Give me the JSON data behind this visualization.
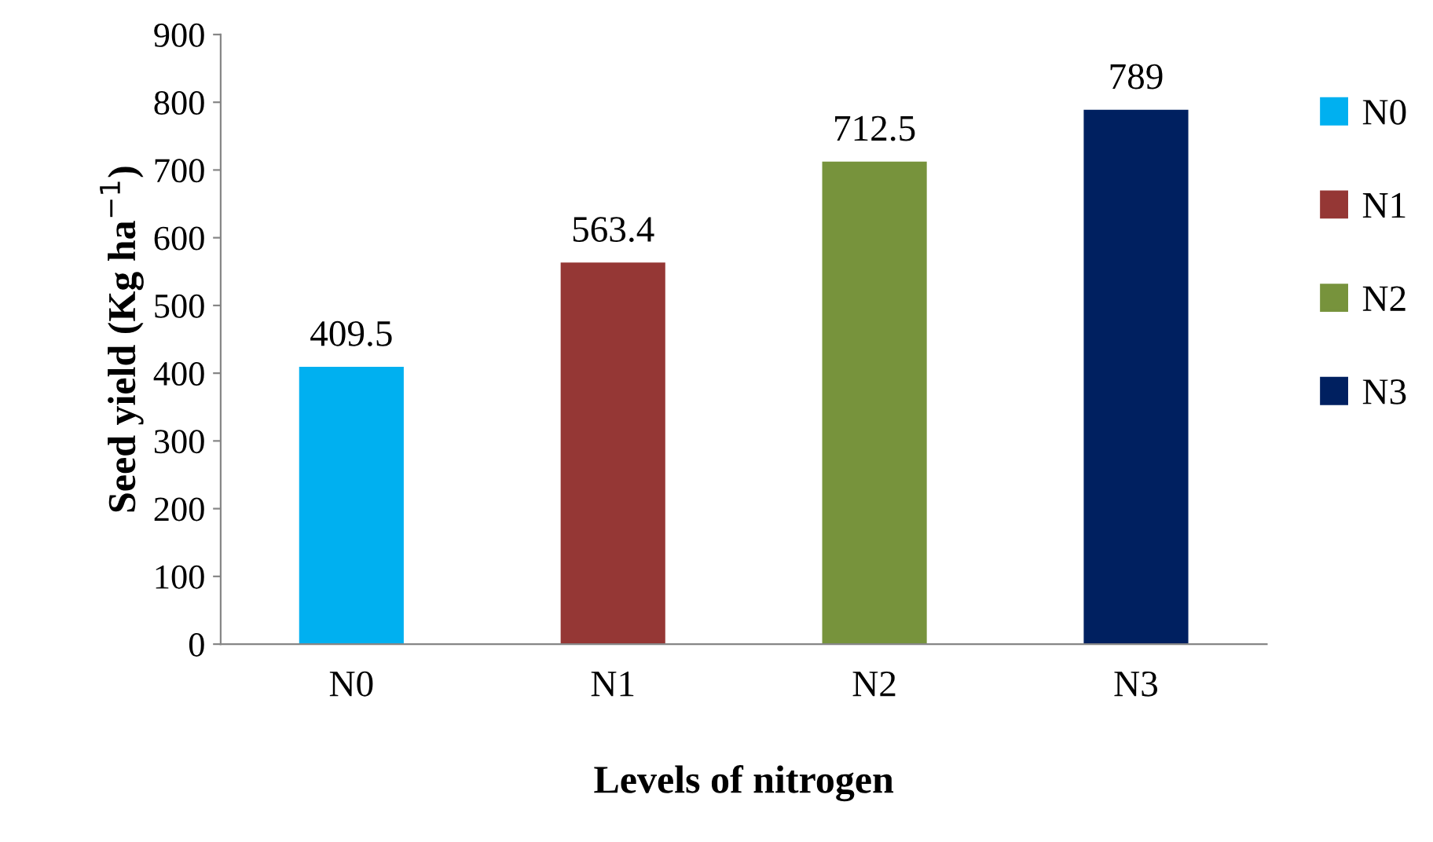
{
  "chart_data": {
    "type": "bar",
    "xlabel": "Levels of nitrogen",
    "ylabel": "Seed yield (Kg ha$^{−1}$)",
    "categories": [
      "N0",
      "N1",
      "N2",
      "N3"
    ],
    "series": [
      {
        "name": "N0",
        "color": "#00b0f0",
        "values": [
          409.5,
          null,
          null,
          null
        ]
      },
      {
        "name": "N1",
        "color": "#953735",
        "values": [
          null,
          563.4,
          null,
          null
        ]
      },
      {
        "name": "N2",
        "color": "#77933c",
        "values": [
          null,
          null,
          712.5,
          null
        ]
      },
      {
        "name": "N3",
        "color": "#002060",
        "values": [
          null,
          null,
          null,
          789
        ]
      }
    ],
    "ylim": [
      0,
      900
    ],
    "yticks": [
      0,
      100,
      200,
      300,
      400,
      500,
      600,
      700,
      800,
      900
    ],
    "data_labels": true,
    "grid": false,
    "legend": "right"
  }
}
